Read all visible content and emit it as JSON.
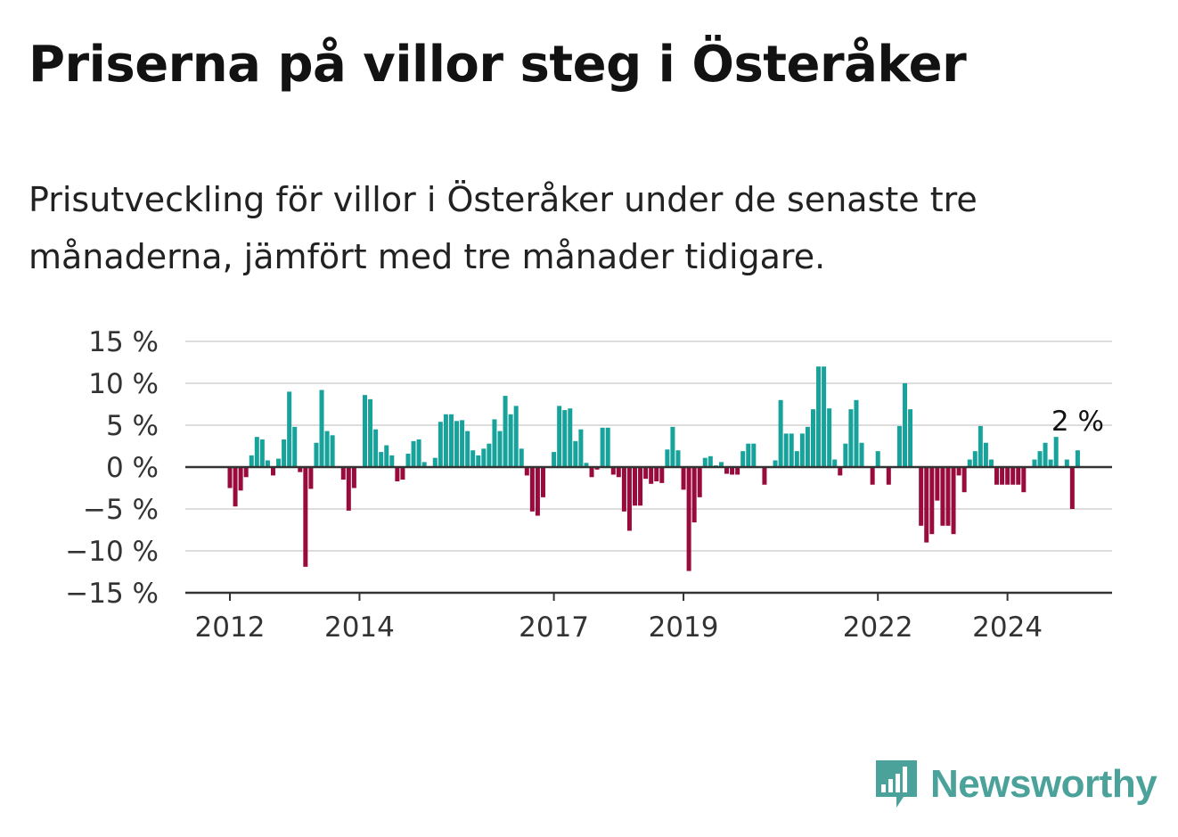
{
  "title": "Priserna på villor steg i Österåker",
  "subtitle": "Prisutveckling för villor i Österåker under de senaste tre månaderna, jämfört med tre månader tidigare.",
  "logo": {
    "text": "Newsworthy",
    "icon": "bar-chart-speech-bubble-icon",
    "color": "#4aa29a"
  },
  "colors": {
    "positive": "#17a39b",
    "negative": "#990a3d",
    "grid": "#dddddd",
    "axis": "#333333",
    "text": "#333333"
  },
  "chart_data": {
    "type": "bar",
    "title": "",
    "xlabel": "",
    "ylabel": "",
    "ylim": [
      -15,
      15
    ],
    "y_ticks": [
      15,
      10,
      5,
      0,
      -5,
      -10,
      -15
    ],
    "y_tick_labels": [
      "15 %",
      "10 %",
      "5 %",
      "0 %",
      "−5 %",
      "−10 %",
      "−15 %"
    ],
    "x_tick_labels": [
      "2012",
      "2014",
      "2017",
      "2019",
      "2022",
      "2024"
    ],
    "x_tick_dates": [
      "2012-01",
      "2014-01",
      "2017-01",
      "2019-01",
      "2022-01",
      "2024-01"
    ],
    "start_month": "2012-01",
    "grid": true,
    "legend": "none",
    "annotation": {
      "text": "2 %",
      "target": "last"
    },
    "values": [
      -2.5,
      -4.7,
      -2.8,
      -1.2,
      1.4,
      3.6,
      3.3,
      0.8,
      -1.0,
      1.0,
      3.3,
      9.0,
      4.8,
      -0.6,
      -11.9,
      -2.6,
      2.9,
      9.2,
      4.3,
      3.8,
      0,
      -1.5,
      -5.2,
      -2.5,
      0,
      8.6,
      8.1,
      4.5,
      1.8,
      2.6,
      1.4,
      -1.7,
      -1.5,
      1.6,
      3.1,
      3.3,
      0.6,
      0,
      1.1,
      5.4,
      6.3,
      6.3,
      5.5,
      5.6,
      4.3,
      2.0,
      1.4,
      2.2,
      2.8,
      5.7,
      4.3,
      8.5,
      6.3,
      7.3,
      2.2,
      -1.0,
      -5.3,
      -5.8,
      -3.6,
      0,
      1.8,
      7.3,
      6.8,
      7.0,
      3.1,
      4.5,
      0.5,
      -1.2,
      -0.3,
      4.7,
      4.7,
      -0.9,
      -1.2,
      -5.3,
      -7.6,
      -4.6,
      -4.6,
      -1.4,
      -2.0,
      -1.7,
      -1.9,
      2.1,
      4.8,
      2.0,
      -2.7,
      -12.4,
      -6.6,
      -3.6,
      1.1,
      1.3,
      0.2,
      0.6,
      -0.8,
      -0.9,
      -0.9,
      1.9,
      2.8,
      2.8,
      0,
      -2.1,
      0,
      0.8,
      8.0,
      4.0,
      4.0,
      1.9,
      4.0,
      4.8,
      6.9,
      12.0,
      12.0,
      7.0,
      0.9,
      -1.0,
      2.8,
      6.9,
      8.0,
      2.9,
      0,
      -2.1,
      1.9,
      0,
      -2.1,
      0,
      4.9,
      10.0,
      6.9,
      0,
      -7.0,
      -9.0,
      -8.0,
      -4.0,
      -7.0,
      -7.0,
      -8.0,
      -1.0,
      -3.0,
      0.9,
      1.9,
      4.9,
      2.9,
      0.9,
      -2.1,
      -2.1,
      -2.1,
      -2.1,
      -2.1,
      -3.0,
      0,
      0.9,
      1.9,
      2.9,
      0.9,
      3.6,
      0,
      0.9,
      -5.0,
      2.0
    ]
  }
}
